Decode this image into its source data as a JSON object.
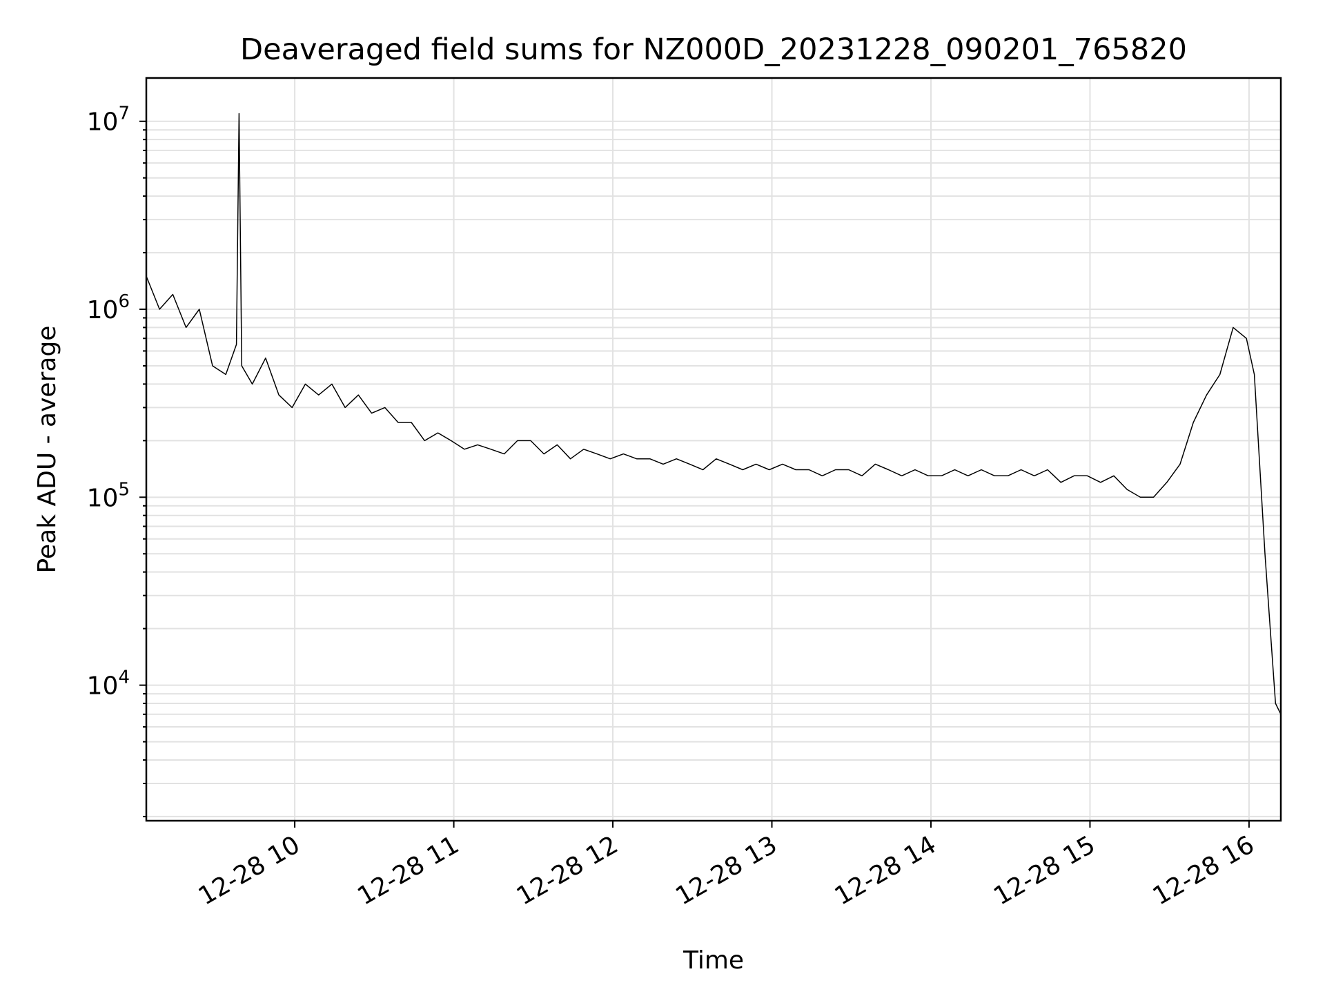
{
  "chart_data": {
    "type": "line",
    "title": "Deaveraged field sums for NZ000D_20231228_090201_765820",
    "xlabel": "Time",
    "ylabel": "Peak ADU - average",
    "yscale": "log",
    "ylim": [
      1900,
      17000000
    ],
    "xlim": [
      "2023-12-28 09:04",
      "2023-12-28 16:12"
    ],
    "grid": true,
    "legend": "none",
    "line_color": "#000000",
    "x_ticks": [
      {
        "value": "2023-12-28 10:00",
        "label": "12-28 10"
      },
      {
        "value": "2023-12-28 11:00",
        "label": "12-28 11"
      },
      {
        "value": "2023-12-28 12:00",
        "label": "12-28 12"
      },
      {
        "value": "2023-12-28 13:00",
        "label": "12-28 13"
      },
      {
        "value": "2023-12-28 14:00",
        "label": "12-28 14"
      },
      {
        "value": "2023-12-28 15:00",
        "label": "12-28 15"
      },
      {
        "value": "2023-12-28 16:00",
        "label": "12-28 16"
      }
    ],
    "y_ticks": [
      {
        "value": 10000,
        "base": "10",
        "exp": "4"
      },
      {
        "value": 100000,
        "base": "10",
        "exp": "5"
      },
      {
        "value": 1000000,
        "base": "10",
        "exp": "6"
      },
      {
        "value": 10000000,
        "base": "10",
        "exp": "7"
      }
    ],
    "series": [
      {
        "x": [
          "2023-12-28 09:04",
          "2023-12-28 09:09",
          "2023-12-28 09:14",
          "2023-12-28 09:19",
          "2023-12-28 09:24",
          "2023-12-28 09:29",
          "2023-12-28 09:34",
          "2023-12-28 09:38",
          "2023-12-28 09:39",
          "2023-12-28 09:40",
          "2023-12-28 09:44",
          "2023-12-28 09:49",
          "2023-12-28 09:54",
          "2023-12-28 09:59",
          "2023-12-28 10:04",
          "2023-12-28 10:09",
          "2023-12-28 10:14",
          "2023-12-28 10:19",
          "2023-12-28 10:24",
          "2023-12-28 10:29",
          "2023-12-28 10:34",
          "2023-12-28 10:39",
          "2023-12-28 10:44",
          "2023-12-28 10:49",
          "2023-12-28 10:54",
          "2023-12-28 10:59",
          "2023-12-28 11:04",
          "2023-12-28 11:09",
          "2023-12-28 11:14",
          "2023-12-28 11:19",
          "2023-12-28 11:24",
          "2023-12-28 11:29",
          "2023-12-28 11:34",
          "2023-12-28 11:39",
          "2023-12-28 11:44",
          "2023-12-28 11:49",
          "2023-12-28 11:54",
          "2023-12-28 11:59",
          "2023-12-28 12:04",
          "2023-12-28 12:09",
          "2023-12-28 12:14",
          "2023-12-28 12:19",
          "2023-12-28 12:24",
          "2023-12-28 12:29",
          "2023-12-28 12:34",
          "2023-12-28 12:39",
          "2023-12-28 12:44",
          "2023-12-28 12:49",
          "2023-12-28 12:54",
          "2023-12-28 12:59",
          "2023-12-28 13:04",
          "2023-12-28 13:09",
          "2023-12-28 13:14",
          "2023-12-28 13:19",
          "2023-12-28 13:24",
          "2023-12-28 13:29",
          "2023-12-28 13:34",
          "2023-12-28 13:39",
          "2023-12-28 13:44",
          "2023-12-28 13:49",
          "2023-12-28 13:54",
          "2023-12-28 13:59",
          "2023-12-28 14:04",
          "2023-12-28 14:09",
          "2023-12-28 14:14",
          "2023-12-28 14:19",
          "2023-12-28 14:24",
          "2023-12-28 14:29",
          "2023-12-28 14:34",
          "2023-12-28 14:39",
          "2023-12-28 14:44",
          "2023-12-28 14:49",
          "2023-12-28 14:54",
          "2023-12-28 14:59",
          "2023-12-28 15:04",
          "2023-12-28 15:09",
          "2023-12-28 15:14",
          "2023-12-28 15:19",
          "2023-12-28 15:24",
          "2023-12-28 15:29",
          "2023-12-28 15:34",
          "2023-12-28 15:39",
          "2023-12-28 15:44",
          "2023-12-28 15:49",
          "2023-12-28 15:54",
          "2023-12-28 15:59",
          "2023-12-28 16:02",
          "2023-12-28 16:04",
          "2023-12-28 16:06",
          "2023-12-28 16:08",
          "2023-12-28 16:10",
          "2023-12-28 16:12"
        ],
        "y": [
          1500000,
          1000000,
          1200000,
          800000,
          1000000,
          500000,
          450000,
          650000,
          11000000,
          500000,
          400000,
          550000,
          350000,
          300000,
          400000,
          350000,
          400000,
          300000,
          350000,
          280000,
          300000,
          250000,
          250000,
          200000,
          220000,
          200000,
          180000,
          190000,
          180000,
          170000,
          200000,
          200000,
          170000,
          190000,
          160000,
          180000,
          170000,
          160000,
          170000,
          160000,
          160000,
          150000,
          160000,
          150000,
          140000,
          160000,
          150000,
          140000,
          150000,
          140000,
          150000,
          140000,
          140000,
          130000,
          140000,
          140000,
          130000,
          150000,
          140000,
          130000,
          140000,
          130000,
          130000,
          140000,
          130000,
          140000,
          130000,
          130000,
          140000,
          130000,
          140000,
          120000,
          130000,
          130000,
          120000,
          130000,
          110000,
          100000,
          100000,
          120000,
          150000,
          250000,
          350000,
          450000,
          800000,
          700000,
          450000,
          150000,
          50000,
          20000,
          8000,
          7000
        ]
      }
    ]
  }
}
